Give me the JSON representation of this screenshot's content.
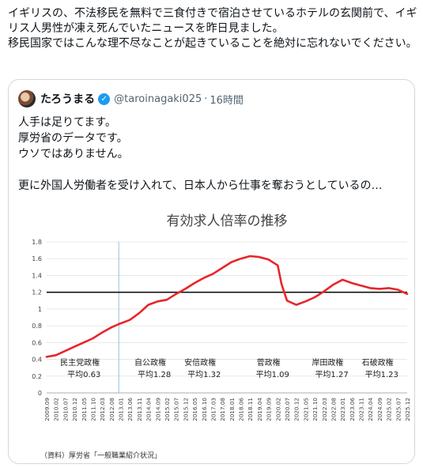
{
  "tweet": {
    "text": "イギリスの、不法移民を無料で三食付きで宿泊させているホテルの玄関前で、イギリス人男性が凍え死んでいたニュースを昨日見ました。\n移民国家ではこんな理不尽なことが起きていることを絶対に忘れないでください。"
  },
  "quoted": {
    "name": "たろうまる",
    "handle": "@taroinagaki025",
    "separator": "·",
    "time": "16時間",
    "verified_glyph": "✓",
    "text": "人手は足りてます。\n厚労省のデータです。\nウソではありません。\n\n更に外国人労働者を受け入れて、日本人から仕事を奪おうとしているの…",
    "avatar_icon": "avatar-image",
    "colors": {
      "verified": "#1d9bf0",
      "muted": "#536471",
      "border": "#cfd9de"
    }
  },
  "chart_data": {
    "type": "line",
    "title": "有効求人倍率の推移",
    "ylim": [
      0,
      1.8
    ],
    "yticks": [
      "0",
      "0.2",
      "0.4",
      "0.6",
      "0.8",
      "1",
      "1.2",
      "1.4",
      "1.6",
      "1.8"
    ],
    "reference_line": 1.2,
    "x_range": [
      "2009.09",
      "2025.12"
    ],
    "xticks": [
      "2009.09",
      "2010.02",
      "2010.07",
      "2010.12",
      "2011.05",
      "2011.10",
      "2012.03",
      "2012.08",
      "2013.01",
      "2013.06",
      "2013.11",
      "2014.04",
      "2014.09",
      "2015.02",
      "2015.07",
      "2015.12",
      "2016.05",
      "2016.10",
      "2017.03",
      "2017.08",
      "2018.01",
      "2018.06",
      "2018.11",
      "2019.04",
      "2019.09",
      "2020.02",
      "2020.07",
      "2020.12",
      "2021.05",
      "2021.10",
      "2022.03",
      "2022.08",
      "2023.01",
      "2023.06",
      "2023.11",
      "2024.04",
      "2024.09",
      "2025.02",
      "2025.07",
      "2025.12"
    ],
    "divider_at": "2012.12",
    "series": [
      {
        "color": "#e8252a",
        "points": [
          [
            "2009.09",
            0.43
          ],
          [
            "2010.02",
            0.45
          ],
          [
            "2010.07",
            0.5
          ],
          [
            "2010.12",
            0.55
          ],
          [
            "2011.05",
            0.6
          ],
          [
            "2011.10",
            0.65
          ],
          [
            "2012.03",
            0.72
          ],
          [
            "2012.08",
            0.78
          ],
          [
            "2012.12",
            0.82
          ],
          [
            "2013.06",
            0.87
          ],
          [
            "2013.11",
            0.95
          ],
          [
            "2014.04",
            1.05
          ],
          [
            "2014.09",
            1.09
          ],
          [
            "2015.02",
            1.11
          ],
          [
            "2015.07",
            1.18
          ],
          [
            "2015.12",
            1.24
          ],
          [
            "2016.05",
            1.31
          ],
          [
            "2016.10",
            1.37
          ],
          [
            "2017.03",
            1.42
          ],
          [
            "2017.08",
            1.49
          ],
          [
            "2018.01",
            1.56
          ],
          [
            "2018.06",
            1.6
          ],
          [
            "2018.11",
            1.63
          ],
          [
            "2019.04",
            1.62
          ],
          [
            "2019.09",
            1.59
          ],
          [
            "2020.02",
            1.52
          ],
          [
            "2020.04",
            1.3
          ],
          [
            "2020.07",
            1.1
          ],
          [
            "2020.12",
            1.05
          ],
          [
            "2021.05",
            1.09
          ],
          [
            "2021.10",
            1.14
          ],
          [
            "2022.03",
            1.21
          ],
          [
            "2022.08",
            1.29
          ],
          [
            "2023.01",
            1.35
          ],
          [
            "2023.06",
            1.31
          ],
          [
            "2023.11",
            1.28
          ],
          [
            "2024.04",
            1.25
          ],
          [
            "2024.09",
            1.24
          ],
          [
            "2025.02",
            1.25
          ],
          [
            "2025.07",
            1.23
          ],
          [
            "2025.12",
            1.18
          ]
        ]
      }
    ],
    "annotations": [
      {
        "label": "民主党政権",
        "sub": "平均0.63",
        "at": "2011.03"
      },
      {
        "label": "自公政権",
        "sub": "平均1.28",
        "at": "2014.05"
      },
      {
        "label": "安倍政権",
        "sub": "平均1.32",
        "at": "2016.08"
      },
      {
        "label": "菅政権",
        "sub": "平均1.09",
        "at": "2019.09"
      },
      {
        "label": "岸田政権",
        "sub": "平均1.27",
        "at": "2022.05"
      },
      {
        "label": "石破政権",
        "sub": "平均1.23",
        "at": "2024.08"
      }
    ],
    "source": "（資料）厚労省「一般職業紹介状況」",
    "grid": true
  }
}
